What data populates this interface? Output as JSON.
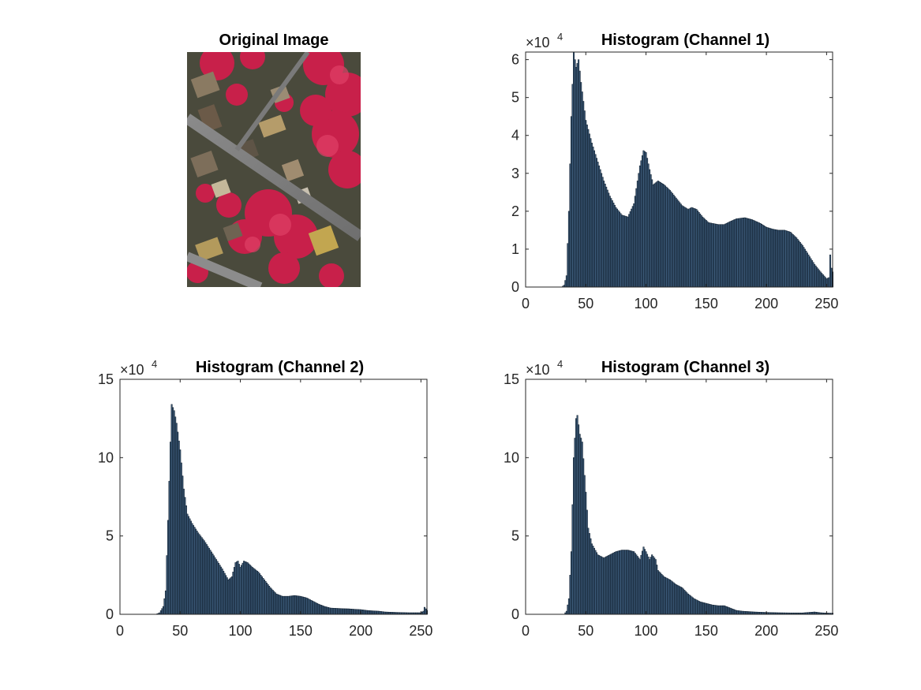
{
  "figure": {
    "image_panel": {
      "title": "Original Image"
    },
    "colors": {
      "bar_fill": "#3c5a78",
      "bar_edge": "#0d1b2a",
      "axis": "#262626"
    }
  },
  "chart_data": [
    {
      "type": "bar",
      "title": "Histogram (Channel 1)",
      "xlabel": "",
      "ylabel": "",
      "xlim": [
        0,
        255
      ],
      "ylim": [
        0,
        62000
      ],
      "x_ticks": [
        0,
        50,
        100,
        150,
        200,
        250
      ],
      "y_ticks": [
        0,
        10000,
        20000,
        30000,
        40000,
        50000,
        60000
      ],
      "y_tick_labels": [
        "0",
        "1",
        "2",
        "3",
        "4",
        "5",
        "6"
      ],
      "exponent_label": {
        "base": "×10",
        "power": "4"
      },
      "grid": false,
      "legend": "none",
      "keypoints": [
        [
          0,
          0
        ],
        [
          30,
          0
        ],
        [
          32,
          500
        ],
        [
          34,
          3000
        ],
        [
          36,
          20000
        ],
        [
          38,
          45000
        ],
        [
          40,
          62000
        ],
        [
          42,
          58000
        ],
        [
          44,
          60000
        ],
        [
          46,
          54000
        ],
        [
          50,
          44000
        ],
        [
          55,
          38000
        ],
        [
          60,
          33000
        ],
        [
          65,
          28000
        ],
        [
          70,
          24000
        ],
        [
          75,
          21000
        ],
        [
          80,
          19000
        ],
        [
          85,
          18500
        ],
        [
          90,
          22000
        ],
        [
          95,
          32000
        ],
        [
          98,
          36000
        ],
        [
          100,
          35500
        ],
        [
          103,
          31000
        ],
        [
          106,
          27000
        ],
        [
          110,
          28000
        ],
        [
          115,
          27000
        ],
        [
          120,
          25500
        ],
        [
          125,
          23500
        ],
        [
          130,
          21500
        ],
        [
          135,
          20500
        ],
        [
          138,
          21000
        ],
        [
          142,
          20500
        ],
        [
          147,
          18500
        ],
        [
          152,
          17000
        ],
        [
          160,
          16500
        ],
        [
          165,
          16500
        ],
        [
          170,
          17300
        ],
        [
          175,
          18000
        ],
        [
          182,
          18300
        ],
        [
          188,
          17800
        ],
        [
          195,
          16800
        ],
        [
          200,
          15800
        ],
        [
          205,
          15300
        ],
        [
          210,
          15000
        ],
        [
          215,
          15000
        ],
        [
          220,
          14500
        ],
        [
          225,
          13000
        ],
        [
          230,
          11000
        ],
        [
          235,
          8500
        ],
        [
          240,
          6000
        ],
        [
          245,
          4000
        ],
        [
          250,
          2200
        ],
        [
          252,
          2500
        ],
        [
          253,
          8500
        ],
        [
          254,
          5000
        ],
        [
          255,
          4000
        ]
      ]
    },
    {
      "type": "bar",
      "title": "Histogram (Channel 2)",
      "xlabel": "",
      "ylabel": "",
      "xlim": [
        0,
        255
      ],
      "ylim": [
        0,
        150000
      ],
      "x_ticks": [
        0,
        50,
        100,
        150,
        200,
        250
      ],
      "y_ticks": [
        0,
        50000,
        100000,
        150000
      ],
      "y_tick_labels": [
        "0",
        "5",
        "10",
        "15"
      ],
      "exponent_label": {
        "base": "×10",
        "power": "4"
      },
      "grid": false,
      "legend": "none",
      "keypoints": [
        [
          0,
          0
        ],
        [
          30,
          0
        ],
        [
          33,
          1000
        ],
        [
          36,
          5000
        ],
        [
          38,
          15000
        ],
        [
          40,
          60000
        ],
        [
          42,
          110000
        ],
        [
          43,
          134000
        ],
        [
          45,
          130000
        ],
        [
          47,
          122000
        ],
        [
          50,
          105000
        ],
        [
          53,
          80000
        ],
        [
          56,
          64000
        ],
        [
          60,
          58000
        ],
        [
          65,
          52000
        ],
        [
          70,
          47000
        ],
        [
          75,
          41000
        ],
        [
          80,
          35000
        ],
        [
          85,
          29000
        ],
        [
          90,
          22000
        ],
        [
          93,
          24000
        ],
        [
          96,
          33000
        ],
        [
          98,
          34000
        ],
        [
          100,
          30000
        ],
        [
          103,
          34000
        ],
        [
          106,
          33000
        ],
        [
          110,
          30000
        ],
        [
          115,
          27000
        ],
        [
          120,
          22000
        ],
        [
          125,
          17000
        ],
        [
          130,
          13000
        ],
        [
          135,
          11500
        ],
        [
          140,
          11500
        ],
        [
          145,
          12000
        ],
        [
          150,
          11500
        ],
        [
          155,
          10500
        ],
        [
          160,
          8500
        ],
        [
          165,
          6500
        ],
        [
          170,
          5000
        ],
        [
          175,
          4000
        ],
        [
          180,
          3800
        ],
        [
          185,
          3600
        ],
        [
          190,
          3500
        ],
        [
          195,
          3200
        ],
        [
          200,
          3000
        ],
        [
          205,
          2500
        ],
        [
          210,
          2200
        ],
        [
          215,
          2000
        ],
        [
          220,
          1500
        ],
        [
          230,
          1200
        ],
        [
          240,
          1000
        ],
        [
          250,
          1000
        ],
        [
          252,
          2000
        ],
        [
          253,
          4500
        ],
        [
          255,
          2500
        ]
      ]
    },
    {
      "type": "bar",
      "title": "Histogram (Channel 3)",
      "xlabel": "",
      "ylabel": "",
      "xlim": [
        0,
        255
      ],
      "ylim": [
        0,
        150000
      ],
      "x_ticks": [
        0,
        50,
        100,
        150,
        200,
        250
      ],
      "y_ticks": [
        0,
        50000,
        100000,
        150000
      ],
      "y_tick_labels": [
        "0",
        "5",
        "10",
        "15"
      ],
      "exponent_label": {
        "base": "×10",
        "power": "4"
      },
      "grid": false,
      "legend": "none",
      "keypoints": [
        [
          0,
          0
        ],
        [
          32,
          0
        ],
        [
          34,
          2000
        ],
        [
          36,
          10000
        ],
        [
          38,
          40000
        ],
        [
          40,
          100000
        ],
        [
          42,
          125000
        ],
        [
          43,
          127000
        ],
        [
          45,
          115000
        ],
        [
          47,
          110000
        ],
        [
          50,
          78000
        ],
        [
          52,
          55000
        ],
        [
          55,
          45000
        ],
        [
          60,
          38000
        ],
        [
          65,
          36000
        ],
        [
          70,
          38000
        ],
        [
          75,
          40000
        ],
        [
          80,
          41000
        ],
        [
          85,
          41000
        ],
        [
          90,
          40000
        ],
        [
          95,
          35000
        ],
        [
          98,
          43000
        ],
        [
          100,
          40000
        ],
        [
          103,
          35000
        ],
        [
          105,
          38000
        ],
        [
          108,
          35000
        ],
        [
          110,
          28000
        ],
        [
          115,
          24000
        ],
        [
          120,
          22000
        ],
        [
          125,
          19000
        ],
        [
          130,
          17000
        ],
        [
          135,
          13000
        ],
        [
          140,
          10000
        ],
        [
          145,
          8000
        ],
        [
          150,
          7000
        ],
        [
          155,
          6000
        ],
        [
          160,
          5500
        ],
        [
          165,
          5500
        ],
        [
          170,
          4000
        ],
        [
          175,
          2500
        ],
        [
          180,
          2000
        ],
        [
          190,
          1500
        ],
        [
          200,
          1200
        ],
        [
          210,
          1000
        ],
        [
          220,
          900
        ],
        [
          230,
          900
        ],
        [
          240,
          1500
        ],
        [
          245,
          1000
        ],
        [
          250,
          800
        ],
        [
          255,
          700
        ]
      ]
    }
  ]
}
